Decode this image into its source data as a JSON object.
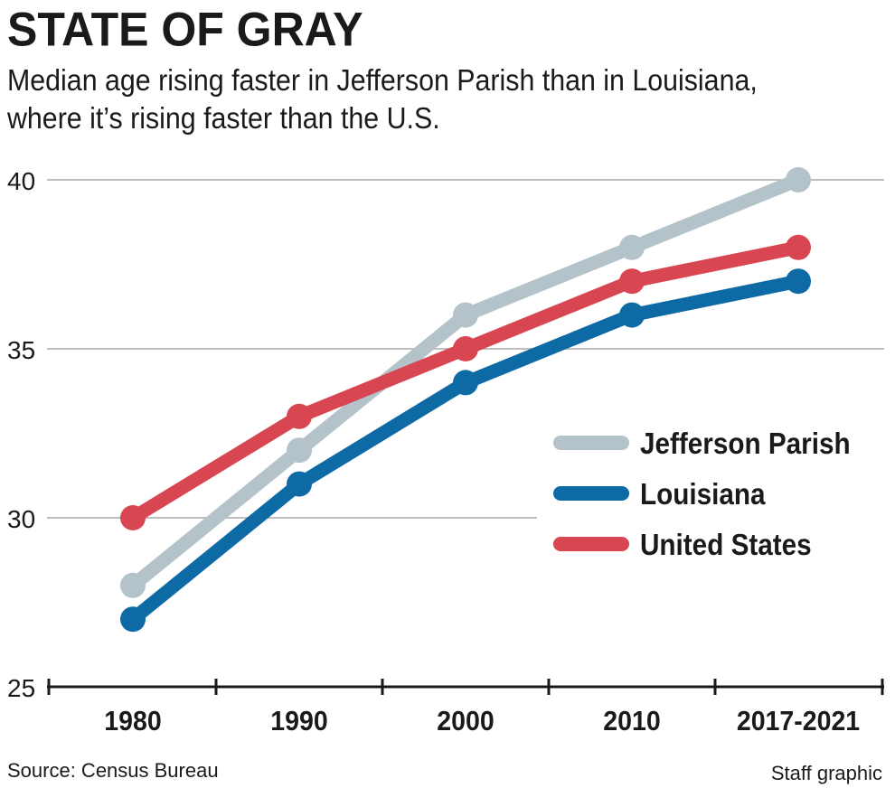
{
  "title": "STATE OF GRAY",
  "subtitle_lines": [
    "Median age rising faster in Jefferson Parish than in Louisiana,",
    "where it’s rising faster than the U.S."
  ],
  "source": "Source: Census Bureau",
  "credit": "Staff graphic",
  "chart_data": {
    "type": "line",
    "categories": [
      "1980",
      "1990",
      "2000",
      "2010",
      "2017-2021"
    ],
    "ylim": [
      25,
      40
    ],
    "yticks": [
      25,
      30,
      35,
      40
    ],
    "grid": true,
    "legend_position": "right",
    "series": [
      {
        "name": "Jefferson Parish",
        "color": "#b4c2c9",
        "values": [
          28,
          32,
          36,
          38,
          40
        ]
      },
      {
        "name": "Louisiana",
        "color": "#0e6aa5",
        "values": [
          27,
          31,
          34,
          36,
          37
        ]
      },
      {
        "name": "United States",
        "color": "#d84652",
        "values": [
          30,
          33,
          35,
          37,
          38
        ]
      }
    ]
  }
}
